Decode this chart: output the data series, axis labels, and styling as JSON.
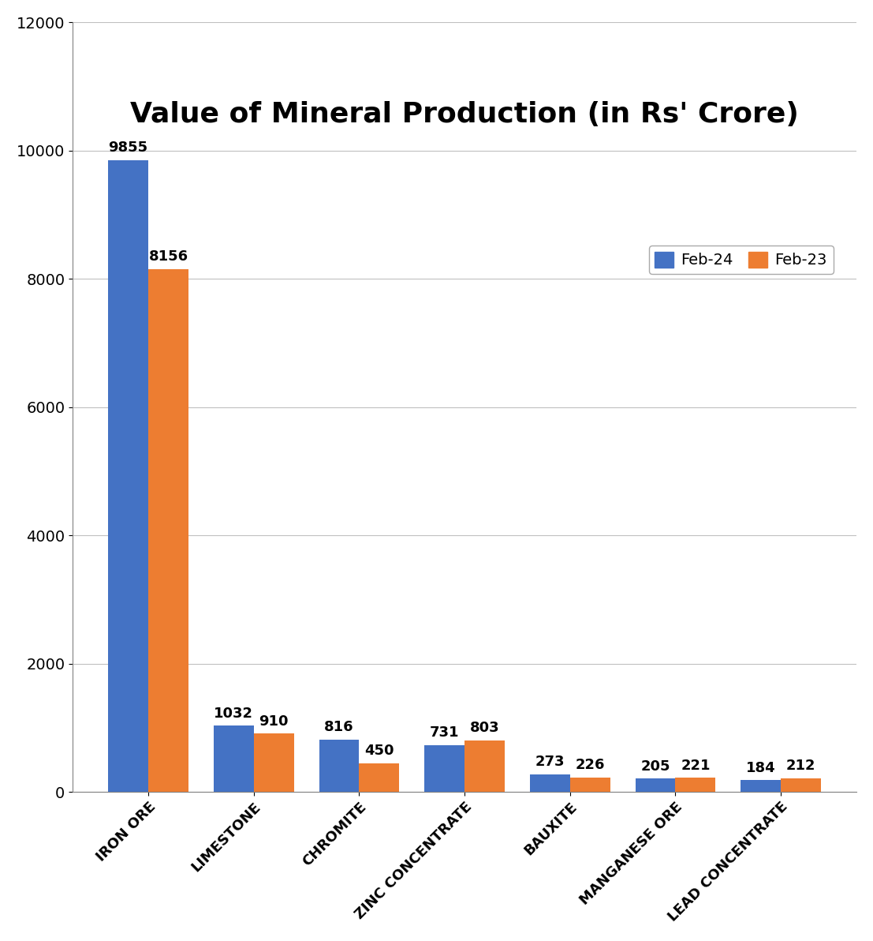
{
  "title": "Value of Mineral Production (in Rs' Crore)",
  "categories": [
    "IRON ORE",
    "LIMESTONE",
    "CHROMITE",
    "ZINC CONCENTRATE",
    "BAUXITE",
    "MANGANESE ORE",
    "LEAD CONCENTRATE"
  ],
  "feb24_values": [
    9855,
    1032,
    816,
    731,
    273,
    205,
    184
  ],
  "feb23_values": [
    8156,
    910,
    450,
    803,
    226,
    221,
    212
  ],
  "feb24_color": "#4472C4",
  "feb23_color": "#ED7D31",
  "legend_labels": [
    "Feb-24",
    "Feb-23"
  ],
  "ylim": [
    0,
    12000
  ],
  "yticks": [
    0,
    2000,
    4000,
    6000,
    8000,
    10000,
    12000
  ],
  "background_color": "#FFFFFF",
  "grid_color": "#C0C0C0",
  "bar_width": 0.38,
  "title_fontsize": 26,
  "tick_fontsize": 14,
  "label_fontsize": 13,
  "annotation_fontsize": 13
}
